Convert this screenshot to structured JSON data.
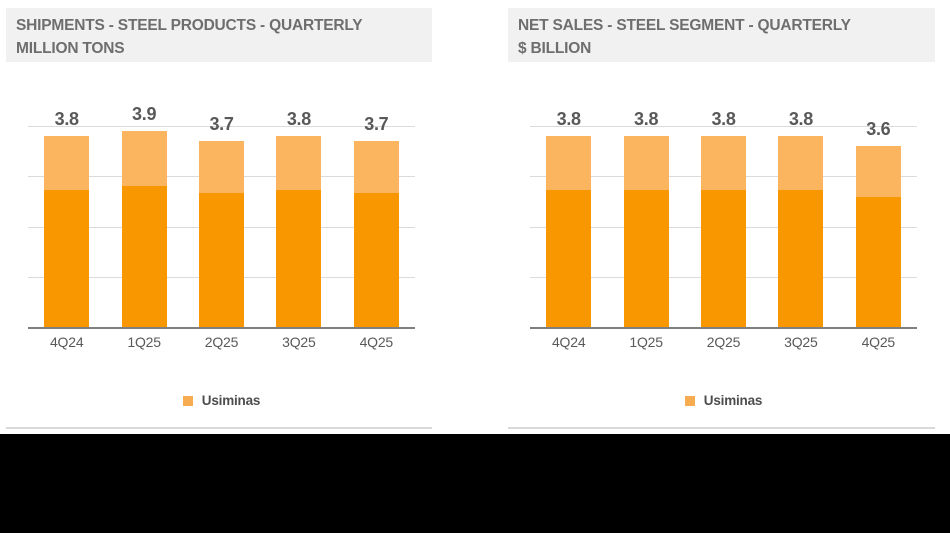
{
  "page": {
    "background": "#FFFFFF",
    "footer_band_color": "#000000"
  },
  "styles": {
    "title_bg": "#F1F1F1",
    "title_text": "#6E6E6E",
    "data_label_text": "#595959",
    "category_text": "#58595B",
    "gridline_color": "#DBDBDB",
    "axis_color": "#7F7F7F",
    "separator_color": "#D9D9D9"
  },
  "chart_data": [
    {
      "type": "bar",
      "stacked": true,
      "title": "SHIPMENTS - STEEL PRODUCTS - QUARTERLY",
      "subtitle": "MILLION TONS",
      "categories": [
        "4Q24",
        "1Q25",
        "2Q25",
        "3Q25",
        "4Q25"
      ],
      "values": [
        3.8,
        3.9,
        3.7,
        3.8,
        3.7
      ],
      "data_labels": [
        "3.8",
        "3.9",
        "3.7",
        "3.8",
        "3.7"
      ],
      "legend": [
        {
          "label": "Usiminas",
          "color": "#F7AC52"
        }
      ],
      "legend_position": "bottom-center",
      "ylim": [
        0,
        4.2
      ],
      "gridline_values": [
        1,
        2,
        3,
        4
      ],
      "grid": true,
      "xlabel": "",
      "ylabel": "MILLION TONS",
      "bar_colors": {
        "bottom": "#F99701",
        "top": "#FAB55E"
      },
      "top_segment_fraction": 0.28
    },
    {
      "type": "bar",
      "stacked": true,
      "title": "NET SALES - STEEL SEGMENT - QUARTERLY",
      "subtitle": "$ BILLION",
      "categories": [
        "4Q24",
        "1Q25",
        "2Q25",
        "3Q25",
        "4Q25"
      ],
      "values": [
        3.8,
        3.8,
        3.8,
        3.8,
        3.6
      ],
      "data_labels": [
        "3.8",
        "3.8",
        "3.8",
        "3.8",
        "3.6"
      ],
      "legend": [
        {
          "label": "Usiminas",
          "color": "#F7AC52"
        }
      ],
      "legend_position": "bottom-center",
      "ylim": [
        0,
        4.2
      ],
      "gridline_values": [
        1,
        2,
        3,
        4
      ],
      "grid": true,
      "xlabel": "",
      "ylabel": "$ BILLION",
      "bar_colors": {
        "bottom": "#F99701",
        "top": "#FAB55E"
      },
      "top_segment_fraction": 0.28
    }
  ]
}
